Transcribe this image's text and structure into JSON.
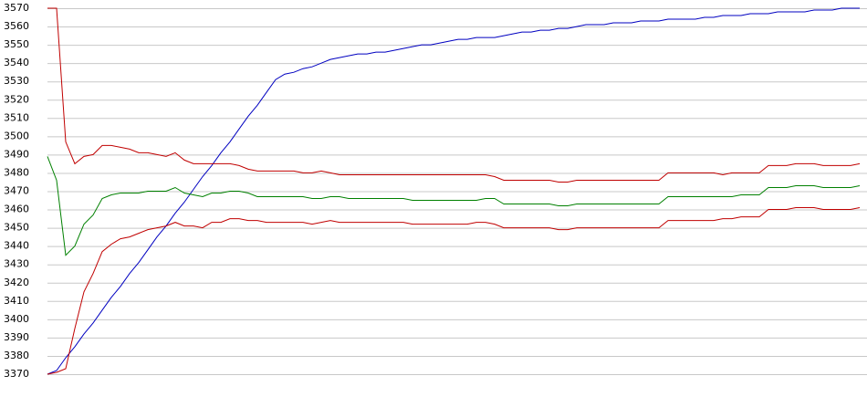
{
  "chart_data": {
    "type": "line",
    "ylim": [
      3370,
      3570
    ],
    "yticks": [
      3370,
      3380,
      3390,
      3400,
      3410,
      3420,
      3430,
      3440,
      3450,
      3460,
      3470,
      3480,
      3490,
      3500,
      3510,
      3520,
      3530,
      3540,
      3550,
      3560,
      3570
    ],
    "grid": true,
    "series": [
      {
        "color": "#0000c0",
        "values": [
          3370,
          3372,
          3379,
          3385,
          3392,
          3398,
          3405,
          3412,
          3418,
          3425,
          3431,
          3438,
          3445,
          3451,
          3458,
          3464,
          3471,
          3478,
          3484,
          3491,
          3497,
          3504,
          3511,
          3517,
          3524,
          3531,
          3534,
          3535,
          3537,
          3538,
          3540,
          3542,
          3543,
          3544,
          3545,
          3545,
          3546,
          3546,
          3547,
          3548,
          3549,
          3550,
          3550,
          3551,
          3552,
          3553,
          3553,
          3554,
          3554,
          3554,
          3555,
          3556,
          3557,
          3557,
          3558,
          3558,
          3559,
          3559,
          3560,
          3561,
          3561,
          3561,
          3562,
          3562,
          3562,
          3563,
          3563,
          3563,
          3564,
          3564,
          3564,
          3564,
          3565,
          3565,
          3566,
          3566,
          3566,
          3567,
          3567,
          3567,
          3568,
          3568,
          3568,
          3568,
          3569,
          3569,
          3569,
          3570,
          3570,
          3570
        ]
      },
      {
        "color": "#c00000",
        "values": [
          3570,
          3570,
          3497,
          3485,
          3489,
          3490,
          3495,
          3495,
          3494,
          3493,
          3491,
          3491,
          3490,
          3489,
          3491,
          3487,
          3485,
          3485,
          3485,
          3485,
          3485,
          3484,
          3482,
          3481,
          3481,
          3481,
          3481,
          3481,
          3480,
          3480,
          3481,
          3480,
          3479,
          3479,
          3479,
          3479,
          3479,
          3479,
          3479,
          3479,
          3479,
          3479,
          3479,
          3479,
          3479,
          3479,
          3479,
          3479,
          3479,
          3478,
          3476,
          3476,
          3476,
          3476,
          3476,
          3476,
          3475,
          3475,
          3476,
          3476,
          3476,
          3476,
          3476,
          3476,
          3476,
          3476,
          3476,
          3476,
          3480,
          3480,
          3480,
          3480,
          3480,
          3480,
          3479,
          3480,
          3480,
          3480,
          3480,
          3484,
          3484,
          3484,
          3485,
          3485,
          3485,
          3484,
          3484,
          3484,
          3484,
          3485
        ]
      },
      {
        "color": "#008000",
        "values": [
          3489,
          3476,
          3435,
          3440,
          3452,
          3457,
          3466,
          3468,
          3469,
          3469,
          3469,
          3470,
          3470,
          3470,
          3472,
          3469,
          3468,
          3467,
          3469,
          3469,
          3470,
          3470,
          3469,
          3467,
          3467,
          3467,
          3467,
          3467,
          3467,
          3466,
          3466,
          3467,
          3467,
          3466,
          3466,
          3466,
          3466,
          3466,
          3466,
          3466,
          3465,
          3465,
          3465,
          3465,
          3465,
          3465,
          3465,
          3465,
          3466,
          3466,
          3463,
          3463,
          3463,
          3463,
          3463,
          3463,
          3462,
          3462,
          3463,
          3463,
          3463,
          3463,
          3463,
          3463,
          3463,
          3463,
          3463,
          3463,
          3467,
          3467,
          3467,
          3467,
          3467,
          3467,
          3467,
          3467,
          3468,
          3468,
          3468,
          3472,
          3472,
          3472,
          3473,
          3473,
          3473,
          3472,
          3472,
          3472,
          3472,
          3473
        ]
      },
      {
        "color": "#c00000",
        "values": [
          3370,
          3371,
          3373,
          3395,
          3415,
          3425,
          3437,
          3441,
          3444,
          3445,
          3447,
          3449,
          3450,
          3451,
          3453,
          3451,
          3451,
          3450,
          3453,
          3453,
          3455,
          3455,
          3454,
          3454,
          3453,
          3453,
          3453,
          3453,
          3453,
          3452,
          3453,
          3454,
          3453,
          3453,
          3453,
          3453,
          3453,
          3453,
          3453,
          3453,
          3452,
          3452,
          3452,
          3452,
          3452,
          3452,
          3452,
          3453,
          3453,
          3452,
          3450,
          3450,
          3450,
          3450,
          3450,
          3450,
          3449,
          3449,
          3450,
          3450,
          3450,
          3450,
          3450,
          3450,
          3450,
          3450,
          3450,
          3450,
          3454,
          3454,
          3454,
          3454,
          3454,
          3454,
          3455,
          3455,
          3456,
          3456,
          3456,
          3460,
          3460,
          3460,
          3461,
          3461,
          3461,
          3460,
          3460,
          3460,
          3460,
          3461
        ]
      }
    ]
  }
}
